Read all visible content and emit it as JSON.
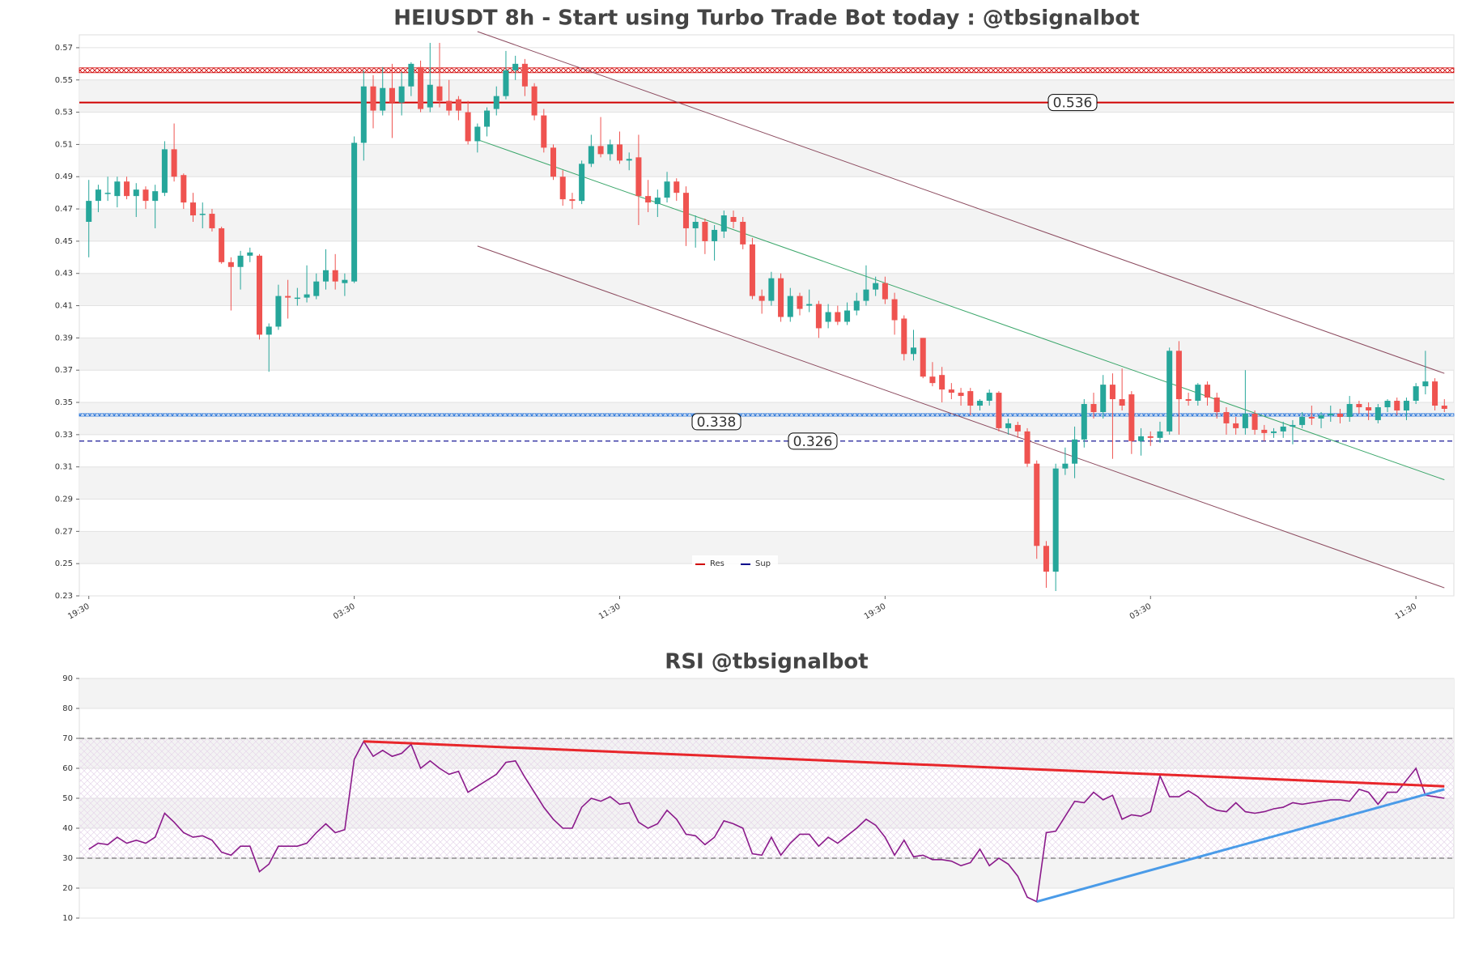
{
  "chart_data": [
    {
      "type": "candlestick",
      "title": "HEIUSDT 8h - Start using Turbo Trade Bot today : @tbsignalbot",
      "up_color": "#26a69a",
      "down_color": "#ef5350",
      "xlim": [
        -1,
        144
      ],
      "ylim": [
        0.23,
        0.578
      ],
      "yticks": [
        0.23,
        0.25,
        0.27,
        0.29,
        0.31,
        0.33,
        0.35,
        0.37,
        0.39,
        0.41,
        0.43,
        0.45,
        0.47,
        0.49,
        0.51,
        0.53,
        0.55,
        0.57
      ],
      "xticks": [
        {
          "value": 0,
          "label": "19:30"
        },
        {
          "value": 28,
          "label": "03:30"
        },
        {
          "value": 56,
          "label": "11:30"
        },
        {
          "value": 84,
          "label": "19:30"
        },
        {
          "value": 112,
          "label": "03:30"
        },
        {
          "value": 140,
          "label": "11:30"
        }
      ],
      "ohlc": [
        [
          0.462,
          0.488,
          0.44,
          0.475
        ],
        [
          0.475,
          0.485,
          0.468,
          0.482
        ],
        [
          0.48,
          0.49,
          0.475,
          0.48
        ],
        [
          0.478,
          0.49,
          0.471,
          0.487
        ],
        [
          0.487,
          0.49,
          0.476,
          0.478
        ],
        [
          0.478,
          0.486,
          0.465,
          0.482
        ],
        [
          0.482,
          0.484,
          0.47,
          0.475
        ],
        [
          0.475,
          0.485,
          0.458,
          0.481
        ],
        [
          0.48,
          0.512,
          0.478,
          0.507
        ],
        [
          0.507,
          0.523,
          0.487,
          0.49
        ],
        [
          0.491,
          0.492,
          0.47,
          0.474
        ],
        [
          0.474,
          0.48,
          0.462,
          0.466
        ],
        [
          0.467,
          0.474,
          0.458,
          0.467
        ],
        [
          0.467,
          0.47,
          0.456,
          0.458
        ],
        [
          0.458,
          0.459,
          0.436,
          0.437
        ],
        [
          0.437,
          0.44,
          0.407,
          0.434
        ],
        [
          0.434,
          0.444,
          0.42,
          0.441
        ],
        [
          0.441,
          0.446,
          0.437,
          0.443
        ],
        [
          0.441,
          0.442,
          0.389,
          0.392
        ],
        [
          0.392,
          0.399,
          0.369,
          0.397
        ],
        [
          0.397,
          0.423,
          0.395,
          0.416
        ],
        [
          0.416,
          0.426,
          0.402,
          0.415
        ],
        [
          0.415,
          0.421,
          0.41,
          0.415
        ],
        [
          0.415,
          0.435,
          0.412,
          0.417
        ],
        [
          0.416,
          0.43,
          0.414,
          0.425
        ],
        [
          0.425,
          0.445,
          0.42,
          0.432
        ],
        [
          0.432,
          0.442,
          0.42,
          0.425
        ],
        [
          0.424,
          0.43,
          0.416,
          0.426
        ],
        [
          0.425,
          0.515,
          0.424,
          0.511
        ],
        [
          0.511,
          0.556,
          0.5,
          0.546
        ],
        [
          0.546,
          0.553,
          0.52,
          0.531
        ],
        [
          0.531,
          0.558,
          0.528,
          0.545
        ],
        [
          0.545,
          0.56,
          0.514,
          0.536
        ],
        [
          0.536,
          0.555,
          0.528,
          0.546
        ],
        [
          0.546,
          0.561,
          0.54,
          0.56
        ],
        [
          0.558,
          0.562,
          0.53,
          0.532
        ],
        [
          0.533,
          0.573,
          0.53,
          0.547
        ],
        [
          0.546,
          0.573,
          0.533,
          0.537
        ],
        [
          0.537,
          0.55,
          0.528,
          0.531
        ],
        [
          0.538,
          0.54,
          0.525,
          0.531
        ],
        [
          0.53,
          0.537,
          0.51,
          0.512
        ],
        [
          0.512,
          0.523,
          0.505,
          0.521
        ],
        [
          0.521,
          0.533,
          0.515,
          0.531
        ],
        [
          0.532,
          0.546,
          0.528,
          0.54
        ],
        [
          0.54,
          0.568,
          0.538,
          0.556
        ],
        [
          0.556,
          0.565,
          0.55,
          0.56
        ],
        [
          0.56,
          0.563,
          0.54,
          0.546
        ],
        [
          0.546,
          0.548,
          0.525,
          0.528
        ],
        [
          0.528,
          0.532,
          0.505,
          0.508
        ],
        [
          0.508,
          0.51,
          0.488,
          0.49
        ],
        [
          0.49,
          0.494,
          0.472,
          0.476
        ],
        [
          0.476,
          0.48,
          0.47,
          0.475
        ],
        [
          0.475,
          0.5,
          0.473,
          0.498
        ],
        [
          0.498,
          0.516,
          0.496,
          0.509
        ],
        [
          0.509,
          0.527,
          0.502,
          0.504
        ],
        [
          0.504,
          0.513,
          0.5,
          0.51
        ],
        [
          0.51,
          0.518,
          0.498,
          0.5
        ],
        [
          0.5,
          0.505,
          0.494,
          0.501
        ],
        [
          0.502,
          0.516,
          0.46,
          0.478
        ],
        [
          0.478,
          0.488,
          0.468,
          0.474
        ],
        [
          0.473,
          0.482,
          0.465,
          0.477
        ],
        [
          0.477,
          0.493,
          0.474,
          0.487
        ],
        [
          0.487,
          0.489,
          0.475,
          0.48
        ],
        [
          0.48,
          0.484,
          0.447,
          0.458
        ],
        [
          0.458,
          0.466,
          0.446,
          0.462
        ],
        [
          0.462,
          0.464,
          0.442,
          0.45
        ],
        [
          0.45,
          0.46,
          0.438,
          0.457
        ],
        [
          0.456,
          0.469,
          0.452,
          0.466
        ],
        [
          0.465,
          0.469,
          0.458,
          0.462
        ],
        [
          0.462,
          0.465,
          0.445,
          0.448
        ],
        [
          0.448,
          0.452,
          0.414,
          0.416
        ],
        [
          0.416,
          0.42,
          0.405,
          0.413
        ],
        [
          0.413,
          0.431,
          0.41,
          0.427
        ],
        [
          0.427,
          0.43,
          0.4,
          0.403
        ],
        [
          0.403,
          0.421,
          0.4,
          0.416
        ],
        [
          0.416,
          0.418,
          0.404,
          0.408
        ],
        [
          0.41,
          0.42,
          0.406,
          0.411
        ],
        [
          0.411,
          0.413,
          0.39,
          0.396
        ],
        [
          0.4,
          0.411,
          0.396,
          0.406
        ],
        [
          0.406,
          0.41,
          0.398,
          0.4
        ],
        [
          0.4,
          0.412,
          0.398,
          0.407
        ],
        [
          0.407,
          0.418,
          0.404,
          0.413
        ],
        [
          0.413,
          0.435,
          0.41,
          0.42
        ],
        [
          0.42,
          0.428,
          0.416,
          0.424
        ],
        [
          0.424,
          0.428,
          0.411,
          0.414
        ],
        [
          0.414,
          0.418,
          0.392,
          0.401
        ],
        [
          0.402,
          0.404,
          0.376,
          0.38
        ],
        [
          0.38,
          0.395,
          0.376,
          0.384
        ],
        [
          0.39,
          0.39,
          0.365,
          0.366
        ],
        [
          0.366,
          0.375,
          0.36,
          0.362
        ],
        [
          0.367,
          0.372,
          0.35,
          0.358
        ],
        [
          0.358,
          0.362,
          0.352,
          0.356
        ],
        [
          0.356,
          0.359,
          0.348,
          0.354
        ],
        [
          0.357,
          0.359,
          0.342,
          0.348
        ],
        [
          0.348,
          0.352,
          0.345,
          0.351
        ],
        [
          0.351,
          0.358,
          0.348,
          0.356
        ],
        [
          0.356,
          0.357,
          0.332,
          0.334
        ],
        [
          0.334,
          0.34,
          0.33,
          0.337
        ],
        [
          0.336,
          0.338,
          0.328,
          0.332
        ],
        [
          0.332,
          0.334,
          0.31,
          0.312
        ],
        [
          0.312,
          0.314,
          0.253,
          0.261
        ],
        [
          0.261,
          0.264,
          0.235,
          0.245
        ],
        [
          0.245,
          0.312,
          0.233,
          0.309
        ],
        [
          0.309,
          0.322,
          0.305,
          0.312
        ],
        [
          0.312,
          0.335,
          0.303,
          0.327
        ],
        [
          0.327,
          0.352,
          0.322,
          0.349
        ],
        [
          0.349,
          0.356,
          0.34,
          0.344
        ],
        [
          0.344,
          0.367,
          0.34,
          0.361
        ],
        [
          0.361,
          0.368,
          0.315,
          0.352
        ],
        [
          0.352,
          0.371,
          0.345,
          0.348
        ],
        [
          0.355,
          0.357,
          0.318,
          0.326
        ],
        [
          0.326,
          0.334,
          0.317,
          0.329
        ],
        [
          0.329,
          0.332,
          0.323,
          0.328
        ],
        [
          0.328,
          0.338,
          0.325,
          0.332
        ],
        [
          0.332,
          0.384,
          0.33,
          0.382
        ],
        [
          0.382,
          0.388,
          0.33,
          0.352
        ],
        [
          0.352,
          0.356,
          0.348,
          0.351
        ],
        [
          0.351,
          0.362,
          0.348,
          0.361
        ],
        [
          0.361,
          0.363,
          0.348,
          0.353
        ],
        [
          0.353,
          0.356,
          0.34,
          0.344
        ],
        [
          0.344,
          0.347,
          0.33,
          0.337
        ],
        [
          0.337,
          0.341,
          0.33,
          0.334
        ],
        [
          0.334,
          0.37,
          0.33,
          0.343
        ],
        [
          0.343,
          0.345,
          0.33,
          0.333
        ],
        [
          0.333,
          0.336,
          0.326,
          0.331
        ],
        [
          0.331,
          0.334,
          0.328,
          0.332
        ],
        [
          0.332,
          0.338,
          0.328,
          0.335
        ],
        [
          0.335,
          0.339,
          0.324,
          0.336
        ],
        [
          0.336,
          0.344,
          0.334,
          0.341
        ],
        [
          0.341,
          0.348,
          0.336,
          0.34
        ],
        [
          0.34,
          0.344,
          0.334,
          0.342
        ],
        [
          0.342,
          0.348,
          0.338,
          0.343
        ],
        [
          0.343,
          0.346,
          0.337,
          0.341
        ],
        [
          0.341,
          0.354,
          0.338,
          0.349
        ],
        [
          0.349,
          0.351,
          0.343,
          0.347
        ],
        [
          0.347,
          0.35,
          0.339,
          0.345
        ],
        [
          0.339,
          0.349,
          0.337,
          0.347
        ],
        [
          0.347,
          0.352,
          0.344,
          0.351
        ],
        [
          0.351,
          0.353,
          0.342,
          0.345
        ],
        [
          0.345,
          0.353,
          0.339,
          0.351
        ],
        [
          0.351,
          0.362,
          0.349,
          0.36
        ],
        [
          0.36,
          0.382,
          0.355,
          0.363
        ],
        [
          0.363,
          0.365,
          0.345,
          0.348
        ],
        [
          0.348,
          0.352,
          0.344,
          0.346
        ]
      ],
      "zones": [
        {
          "range": [
            0.5545,
            0.5575
          ],
          "color": "#d00000"
        },
        {
          "range": [
            0.3415,
            0.343
          ],
          "color": "#1e6fd9"
        }
      ],
      "levels": [
        {
          "value": 0.536,
          "color": "#d00000",
          "style": "solid"
        },
        {
          "value": 0.338,
          "color": "#0000cc",
          "style": "none"
        },
        {
          "value": 0.326,
          "color": "#00008b",
          "style": "dashed"
        }
      ],
      "trend_lines": [
        {
          "color": "#8b4a5e",
          "points": [
            [
              41,
              0.58
            ],
            [
              143,
              0.368
            ]
          ]
        },
        {
          "color": "#8b4a5e",
          "points": [
            [
              41,
              0.447
            ],
            [
              143,
              0.235
            ]
          ]
        },
        {
          "color": "#3aa66a",
          "points": [
            [
              41,
              0.513
            ],
            [
              143,
              0.302
            ]
          ]
        }
      ],
      "legend": [
        {
          "name": "Res",
          "color": "#d00000"
        },
        {
          "name": "Sup",
          "color": "#00008b"
        }
      ]
    },
    {
      "type": "line",
      "title": "RSI @tbsignalbot",
      "color": "#8b1a8b",
      "xlim": [
        -1,
        144
      ],
      "ylim": [
        10,
        90
      ],
      "yticks": [
        10,
        20,
        30,
        40,
        50,
        60,
        70,
        80,
        90
      ],
      "hlines": [
        30,
        70
      ],
      "values": [
        33,
        35,
        34.5,
        37,
        35,
        36,
        35,
        37,
        45,
        42,
        38.5,
        37,
        37.5,
        36,
        32,
        31,
        34,
        34,
        25.5,
        28,
        34,
        34,
        34,
        35,
        38.5,
        41.5,
        38.5,
        39.5,
        63,
        69,
        64,
        66,
        64,
        65,
        68,
        60,
        62.5,
        60,
        58,
        59,
        52,
        54,
        56,
        58,
        62,
        62.5,
        57,
        52,
        47,
        43,
        40,
        40,
        47,
        50,
        49,
        50.5,
        48,
        48.5,
        42,
        40,
        41.5,
        46,
        43,
        38,
        37.5,
        34.5,
        37,
        42.5,
        41.5,
        40,
        31.5,
        31,
        37,
        31,
        35,
        38,
        38,
        34,
        37,
        35,
        37.5,
        40,
        43,
        41,
        37,
        31,
        36,
        30.5,
        31,
        29.5,
        29.5,
        29,
        27.5,
        28.5,
        33,
        27.5,
        30,
        28,
        24,
        17,
        15.5,
        38.5,
        39,
        44,
        49,
        48.5,
        52,
        49.5,
        51,
        43,
        44.5,
        44,
        45.5,
        57.5,
        50.5,
        50.5,
        52.5,
        50.5,
        47.5,
        46,
        45.5,
        48.5,
        45.5,
        45,
        45.5,
        46.5,
        47,
        48.5,
        48,
        48.5,
        49,
        49.5,
        49.5,
        49,
        53,
        52,
        48,
        52,
        52,
        56,
        60,
        51,
        50.5,
        50
      ],
      "trend_lines": [
        {
          "color": "#e8262b",
          "points": [
            [
              29,
              69
            ],
            [
              143,
              54
            ]
          ]
        },
        {
          "color": "#4a9be8",
          "points": [
            [
              100,
              15.5
            ],
            [
              143,
              53
            ]
          ]
        }
      ]
    }
  ]
}
